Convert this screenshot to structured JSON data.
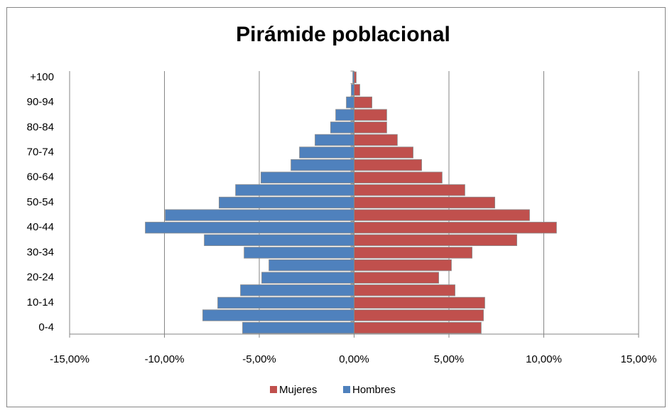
{
  "chart_data": {
    "type": "pyramid",
    "title": "Pirámide poblacional",
    "categories": [
      "0-4",
      null,
      "10-14",
      null,
      "20-24",
      null,
      "30-34",
      null,
      "40-44",
      null,
      "50-54",
      null,
      "60-64",
      null,
      "70-74",
      null,
      "80-84",
      null,
      "90-94",
      null,
      "+100"
    ],
    "series": [
      {
        "name": "Mujeres",
        "color": "#c0504d",
        "values": [
          6.7,
          6.82,
          6.89,
          5.32,
          4.46,
          5.13,
          6.22,
          8.58,
          10.67,
          9.25,
          7.42,
          5.84,
          4.64,
          3.56,
          3.11,
          2.28,
          1.72,
          1.72,
          0.94,
          0.3,
          0.11
        ]
      },
      {
        "name": "Hombres",
        "color": "#4f81bd",
        "values": [
          -5.88,
          -7.98,
          -7.19,
          -5.99,
          -4.87,
          -4.49,
          -5.8,
          -7.9,
          -11.01,
          -9.96,
          -7.12,
          -6.25,
          -4.91,
          -3.33,
          -2.88,
          -2.06,
          -1.24,
          -0.97,
          -0.41,
          -0.15,
          -0.07
        ]
      }
    ],
    "xlim": [
      -15,
      15
    ],
    "xticks": [
      {
        "value": -15,
        "label": "-15,00%"
      },
      {
        "value": -10,
        "label": "-10,00%"
      },
      {
        "value": -5,
        "label": "-5,00%"
      },
      {
        "value": 0,
        "label": "0,00%"
      },
      {
        "value": 5,
        "label": "5,00%"
      },
      {
        "value": 10,
        "label": "10,00%"
      },
      {
        "value": 15,
        "label": "15,00%"
      }
    ],
    "grid": true,
    "legend": "bottom"
  }
}
